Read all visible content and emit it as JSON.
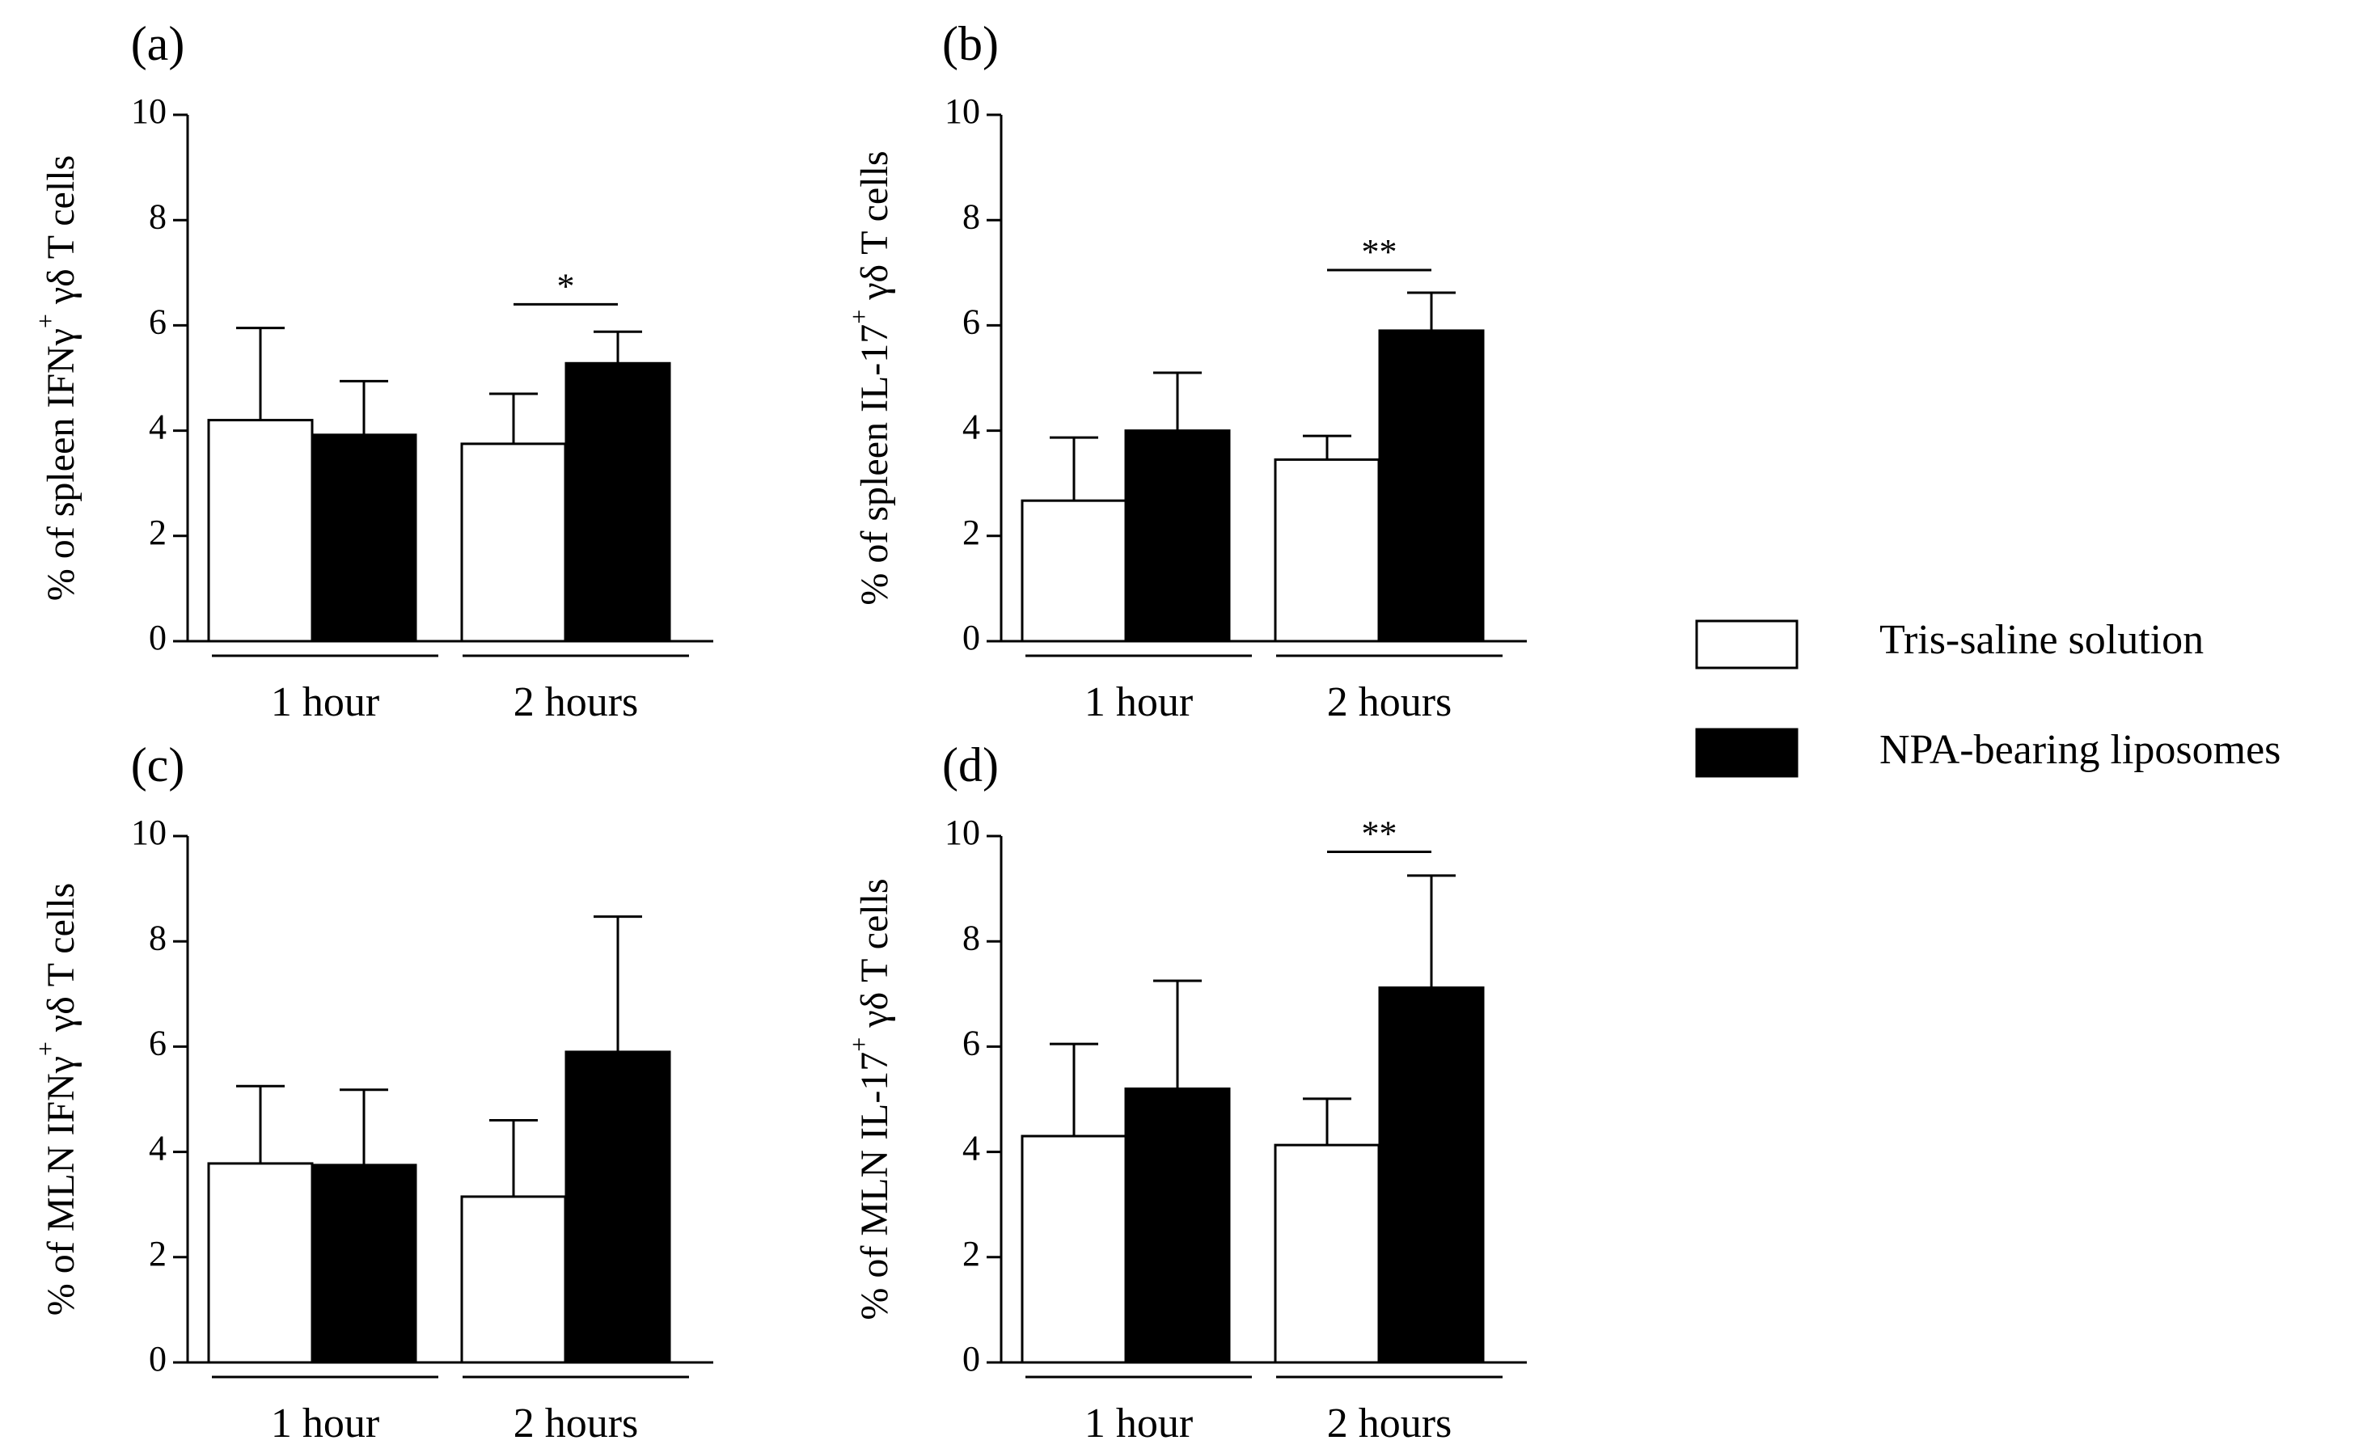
{
  "legend": {
    "items": [
      {
        "label": "Tris-saline solution",
        "color": "#ffffff"
      },
      {
        "label": "NPA-bearing liposomes",
        "color": "#000000"
      }
    ]
  },
  "chart_data": [
    {
      "panel_label": "(a)",
      "type": "bar",
      "ylabel": {
        "prefix": "% of spleen IFNγ",
        "sup": "+",
        "suffix": " γδ T cells"
      },
      "ylim": [
        0,
        10
      ],
      "yticks": [
        "0",
        "2",
        "4",
        "6",
        "8",
        "10"
      ],
      "categories": [
        "1 hour",
        "2 hours"
      ],
      "series": [
        {
          "name": "Tris-saline solution",
          "values": [
            4.2,
            3.75
          ],
          "errors": [
            1.75,
            0.95
          ]
        },
        {
          "name": "NPA-bearing liposomes",
          "values": [
            3.92,
            5.28
          ],
          "errors": [
            1.02,
            0.6
          ]
        }
      ],
      "significance": [
        {
          "category": "2 hours",
          "label": "*",
          "level": 6.4
        }
      ]
    },
    {
      "panel_label": "(b)",
      "type": "bar",
      "ylabel": {
        "prefix": "% of spleen IL-17",
        "sup": "+",
        "suffix": " γδ T cells"
      },
      "ylim": [
        0,
        10
      ],
      "yticks": [
        "0",
        "2",
        "4",
        "6",
        "8",
        "10"
      ],
      "categories": [
        "1 hour",
        "2 hours"
      ],
      "series": [
        {
          "name": "Tris-saline solution",
          "values": [
            2.67,
            3.45
          ],
          "errors": [
            1.2,
            0.45
          ]
        },
        {
          "name": "NPA-bearing liposomes",
          "values": [
            4.0,
            5.9
          ],
          "errors": [
            1.1,
            0.72
          ]
        }
      ],
      "significance": [
        {
          "category": "2 hours",
          "label": "**",
          "level": 7.05
        }
      ]
    },
    {
      "panel_label": "(c)",
      "type": "bar",
      "ylabel": {
        "prefix": "% of MLN IFNγ",
        "sup": "+",
        "suffix": " γδ T cells"
      },
      "ylim": [
        0,
        10
      ],
      "yticks": [
        "0",
        "2",
        "4",
        "6",
        "8",
        "10"
      ],
      "categories": [
        "1 hour",
        "2 hours"
      ],
      "series": [
        {
          "name": "Tris-saline solution",
          "values": [
            3.78,
            3.15
          ],
          "errors": [
            1.47,
            1.45
          ]
        },
        {
          "name": "NPA-bearing liposomes",
          "values": [
            3.75,
            5.9
          ],
          "errors": [
            1.43,
            2.57
          ]
        }
      ],
      "significance": []
    },
    {
      "panel_label": "(d)",
      "type": "bar",
      "ylabel": {
        "prefix": "% of MLN IL-17",
        "sup": "+",
        "suffix": " γδ T cells"
      },
      "ylim": [
        0,
        10
      ],
      "yticks": [
        "0",
        "2",
        "4",
        "6",
        "8",
        "10"
      ],
      "categories": [
        "1 hour",
        "2 hours"
      ],
      "series": [
        {
          "name": "Tris-saline solution",
          "values": [
            4.3,
            4.13
          ],
          "errors": [
            1.75,
            0.88
          ]
        },
        {
          "name": "NPA-bearing liposomes",
          "values": [
            5.2,
            7.12
          ],
          "errors": [
            2.05,
            2.13
          ]
        }
      ],
      "significance": [
        {
          "category": "2 hours",
          "label": "**",
          "level": 9.7
        }
      ]
    }
  ]
}
